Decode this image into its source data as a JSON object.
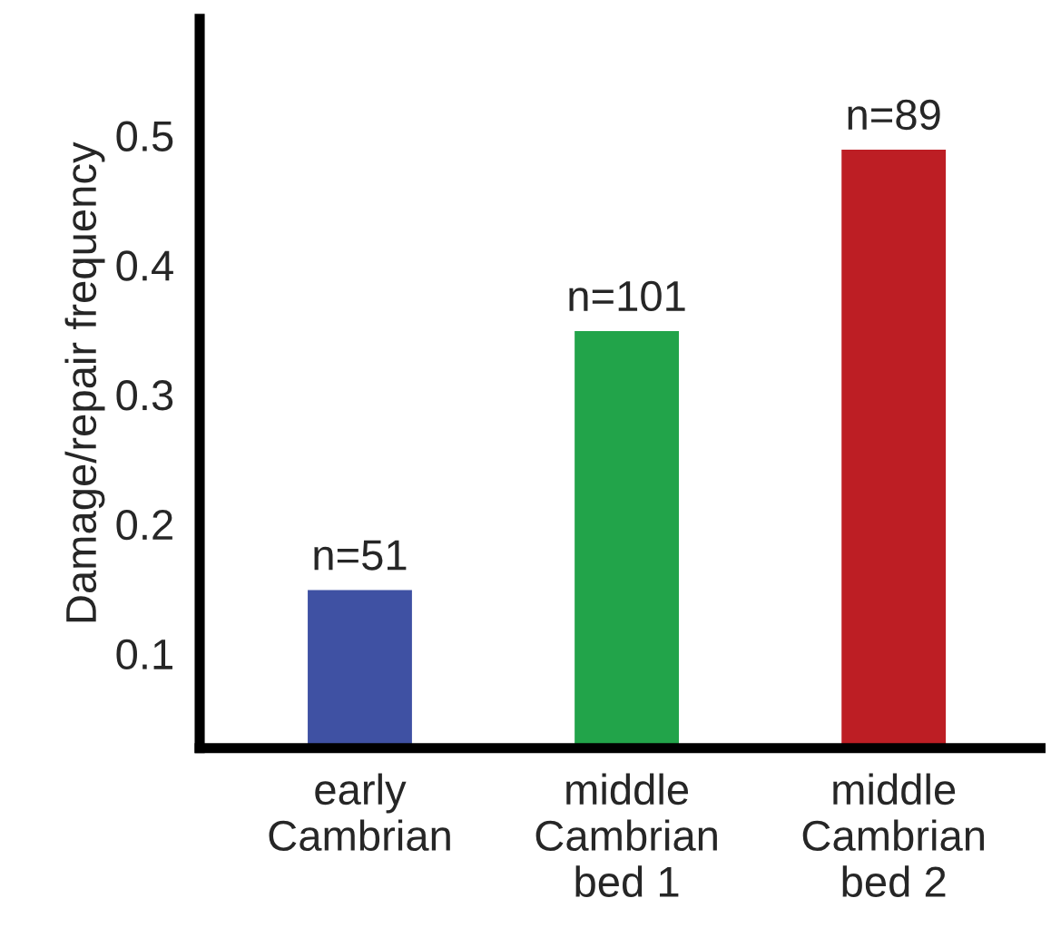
{
  "chart_data": {
    "type": "bar",
    "ylabel": "Damage/repair frequency",
    "categories": [
      "early\nCambrian",
      "middle\nCambrian\nbed 1",
      "middle\nCambrian\nbed 2"
    ],
    "values": [
      0.15,
      0.35,
      0.49
    ],
    "colors": [
      "#3f51a3",
      "#22a44a",
      "#bd1e24"
    ],
    "ylim": [
      0.027,
      0.59
    ],
    "yticks": [
      0.1,
      0.2,
      0.3,
      0.4,
      0.5
    ],
    "annotations": [
      {
        "text": "n=51",
        "x": "early\nCambrian",
        "y": 0.15
      },
      {
        "text": "n=101",
        "x": "middle\nCambrian\nbed 1",
        "y": 0.35
      },
      {
        "text": "n=89",
        "x": "middle\nCambrian\nbed 2",
        "y": 0.49
      }
    ],
    "grid": false
  }
}
